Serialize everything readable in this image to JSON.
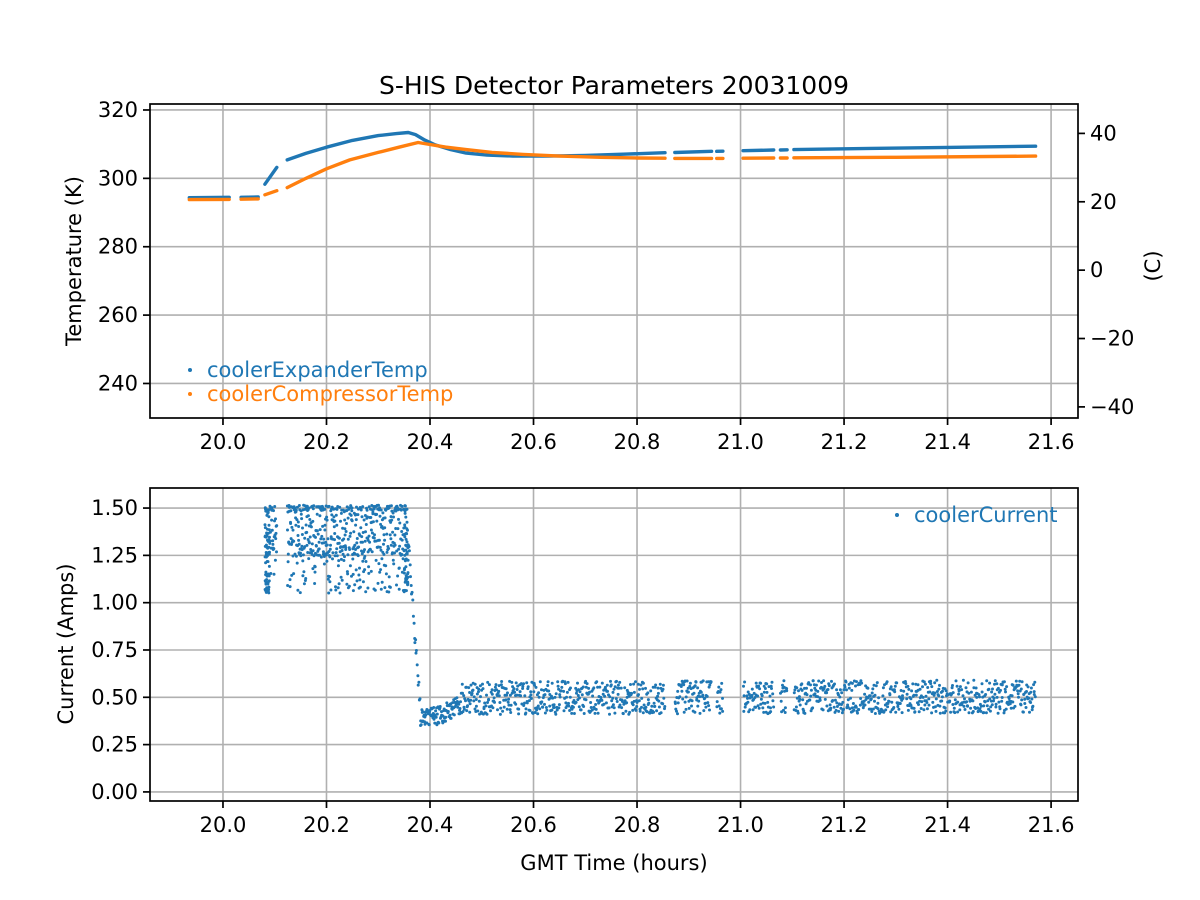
{
  "figure": {
    "background": "#ffffff",
    "text_color": "#000000",
    "grid_color": "#b0b0b0",
    "spine_color": "#000000"
  },
  "chart_data": [
    {
      "type": "scatter",
      "title": "S-HIS Detector Parameters 20031009",
      "ylabel_left": "Temperature (K)",
      "ylabel_right": "(C)",
      "grid": true,
      "xlim": [
        19.859,
        21.652
      ],
      "ylim": [
        229.9,
        321.75
      ],
      "right_axis_kelvin_offset": 273.15,
      "x_ticks": {
        "values": [
          20.0,
          20.2,
          20.4,
          20.6,
          20.8,
          21.0,
          21.2,
          21.4,
          21.6
        ],
        "labels": [
          "20.0",
          "20.2",
          "20.4",
          "20.6",
          "20.8",
          "21.0",
          "21.2",
          "21.4",
          "21.6"
        ]
      },
      "y_ticks_left": {
        "values": [
          240,
          260,
          280,
          300,
          320
        ],
        "labels": [
          "240",
          "260",
          "280",
          "300",
          "320"
        ]
      },
      "y_ticks_right": {
        "values": [
          40,
          20,
          0,
          -20,
          -40
        ],
        "labels": [
          "40",
          "20",
          "0",
          "−20",
          "−40"
        ]
      },
      "legend": {
        "position": "lower-left",
        "label_color_matches_series": true
      },
      "series": [
        {
          "name": "coolerExpanderTemp",
          "color": "#1f77b4",
          "units": "K",
          "segments": [
            [
              [
                19.935,
                294.35
              ],
              [
                20.012,
                294.45
              ]
            ],
            [
              [
                20.035,
                294.45
              ],
              [
                20.068,
                294.55
              ]
            ],
            [
              [
                20.081,
                298.3
              ],
              [
                20.104,
                303.2
              ]
            ],
            [
              [
                20.124,
                305.4
              ],
              [
                20.16,
                307.3
              ],
              [
                20.2,
                309.1
              ],
              [
                20.25,
                311.1
              ],
              [
                20.3,
                312.5
              ],
              [
                20.335,
                313.1
              ],
              [
                20.358,
                313.4
              ],
              [
                20.372,
                312.8
              ],
              [
                20.39,
                311.2
              ],
              [
                20.41,
                309.8
              ],
              [
                20.44,
                308.4
              ],
              [
                20.47,
                307.4
              ],
              [
                20.51,
                306.8
              ],
              [
                20.56,
                306.55
              ],
              [
                20.63,
                306.5
              ],
              [
                20.7,
                306.7
              ],
              [
                20.78,
                307.1
              ],
              [
                20.854,
                307.5
              ]
            ],
            [
              [
                20.873,
                307.55
              ],
              [
                20.944,
                307.9
              ]
            ],
            [
              [
                20.954,
                307.9
              ],
              [
                20.966,
                307.95
              ]
            ],
            [
              [
                21.005,
                308.1
              ],
              [
                21.064,
                308.3
              ]
            ],
            [
              [
                21.077,
                308.3
              ],
              [
                21.09,
                308.35
              ]
            ],
            [
              [
                21.103,
                308.4
              ],
              [
                21.25,
                308.75
              ],
              [
                21.4,
                309.05
              ],
              [
                21.57,
                309.4
              ]
            ]
          ]
        },
        {
          "name": "coolerCompressorTemp",
          "color": "#ff7f0e",
          "units": "K",
          "segments": [
            [
              [
                19.935,
                293.8
              ],
              [
                20.012,
                293.85
              ]
            ],
            [
              [
                20.035,
                293.9
              ],
              [
                20.068,
                294.0
              ]
            ],
            [
              [
                20.081,
                295.2
              ],
              [
                20.104,
                296.4
              ]
            ],
            [
              [
                20.124,
                297.3
              ],
              [
                20.16,
                300.0
              ],
              [
                20.2,
                302.8
              ],
              [
                20.245,
                305.4
              ],
              [
                20.3,
                307.6
              ],
              [
                20.34,
                309.1
              ],
              [
                20.377,
                310.5
              ],
              [
                20.4,
                309.9
              ],
              [
                20.43,
                309.15
              ],
              [
                20.47,
                308.4
              ],
              [
                20.52,
                307.6
              ],
              [
                20.58,
                307.0
              ],
              [
                20.65,
                306.5
              ],
              [
                20.73,
                306.15
              ],
              [
                20.8,
                305.95
              ],
              [
                20.854,
                305.9
              ]
            ],
            [
              [
                20.873,
                305.85
              ],
              [
                20.944,
                305.85
              ]
            ],
            [
              [
                20.954,
                305.85
              ],
              [
                20.966,
                305.85
              ]
            ],
            [
              [
                21.005,
                305.9
              ],
              [
                21.064,
                305.95
              ]
            ],
            [
              [
                21.077,
                305.95
              ],
              [
                21.09,
                305.95
              ]
            ],
            [
              [
                21.103,
                306.0
              ],
              [
                21.3,
                306.15
              ],
              [
                21.57,
                306.5
              ]
            ]
          ]
        }
      ]
    },
    {
      "type": "scatter",
      "xlabel": "GMT Time (hours)",
      "ylabel_left": "Current (Amps)",
      "grid": true,
      "xlim": [
        19.859,
        21.652
      ],
      "ylim": [
        -0.048,
        1.606
      ],
      "x_ticks": {
        "values": [
          20.0,
          20.2,
          20.4,
          20.6,
          20.8,
          21.0,
          21.2,
          21.4,
          21.6
        ],
        "labels": [
          "20.0",
          "20.2",
          "20.4",
          "20.6",
          "20.8",
          "21.0",
          "21.2",
          "21.4",
          "21.6"
        ]
      },
      "y_ticks_left": {
        "values": [
          0.0,
          0.25,
          0.5,
          0.75,
          1.0,
          1.25,
          1.5
        ],
        "labels": [
          "0.00",
          "0.25",
          "0.50",
          "0.75",
          "1.00",
          "1.25",
          "1.50"
        ]
      },
      "legend": {
        "position": "upper-right",
        "label_color_matches_series": true
      },
      "series": [
        {
          "name": "coolerCurrent",
          "color": "#1f77b4",
          "units": "Amps",
          "scatter": {
            "seed": 20031009,
            "marker_radius": 1.5,
            "segments": [
              [
                20.081,
                20.104
              ],
              [
                20.124,
                20.854
              ],
              [
                20.873,
                20.944
              ],
              [
                20.954,
                20.966
              ],
              [
                21.005,
                21.064
              ],
              [
                21.077,
                21.09
              ],
              [
                21.103,
                21.57
              ]
            ],
            "phases": [
              {
                "label": "startup-high-band",
                "t0": 20.081,
                "t1": 20.358,
                "rate": 2300,
                "mix": [
                  {
                    "w": 0.52,
                    "lo": 1.24,
                    "hi": 1.51
                  },
                  {
                    "w": 0.33,
                    "lo": 1.05,
                    "hi": 1.35
                  },
                  {
                    "w": 0.15,
                    "lo": 1.485,
                    "hi": 1.515
                  }
                ]
              },
              {
                "label": "startup-onset-edge",
                "t0": 20.081,
                "t1": 20.09,
                "rate": 6000,
                "mix": [
                  {
                    "w": 1,
                    "lo": 1.05,
                    "hi": 1.51
                  }
                ]
              },
              {
                "label": "pre-drop-edge",
                "t0": 20.35,
                "t1": 20.358,
                "rate": 5000,
                "mix": [
                  {
                    "w": 1,
                    "lo": 1.05,
                    "hi": 1.5
                  }
                ]
              },
              {
                "label": "drop",
                "t0": 20.358,
                "t1": 20.381,
                "rate": 950,
                "path": [
                  [
                    20.358,
                    1.32
                  ],
                  [
                    20.381,
                    0.44
                  ]
                ],
                "spread": 0.045
              },
              {
                "label": "dip-recovery",
                "t0": 20.381,
                "t1": 20.46,
                "rate": 1400,
                "path": [
                  [
                    20.381,
                    0.385
                  ],
                  [
                    20.42,
                    0.405
                  ],
                  [
                    20.46,
                    0.465
                  ]
                ],
                "spread": 0.048
              },
              {
                "label": "steady",
                "t0": 20.46,
                "t1": 21.57,
                "rate": 1150,
                "path": [
                  [
                    20.46,
                    0.497
                  ],
                  [
                    21.57,
                    0.503
                  ]
                ],
                "spread": 0.088
              }
            ]
          }
        }
      ]
    }
  ]
}
